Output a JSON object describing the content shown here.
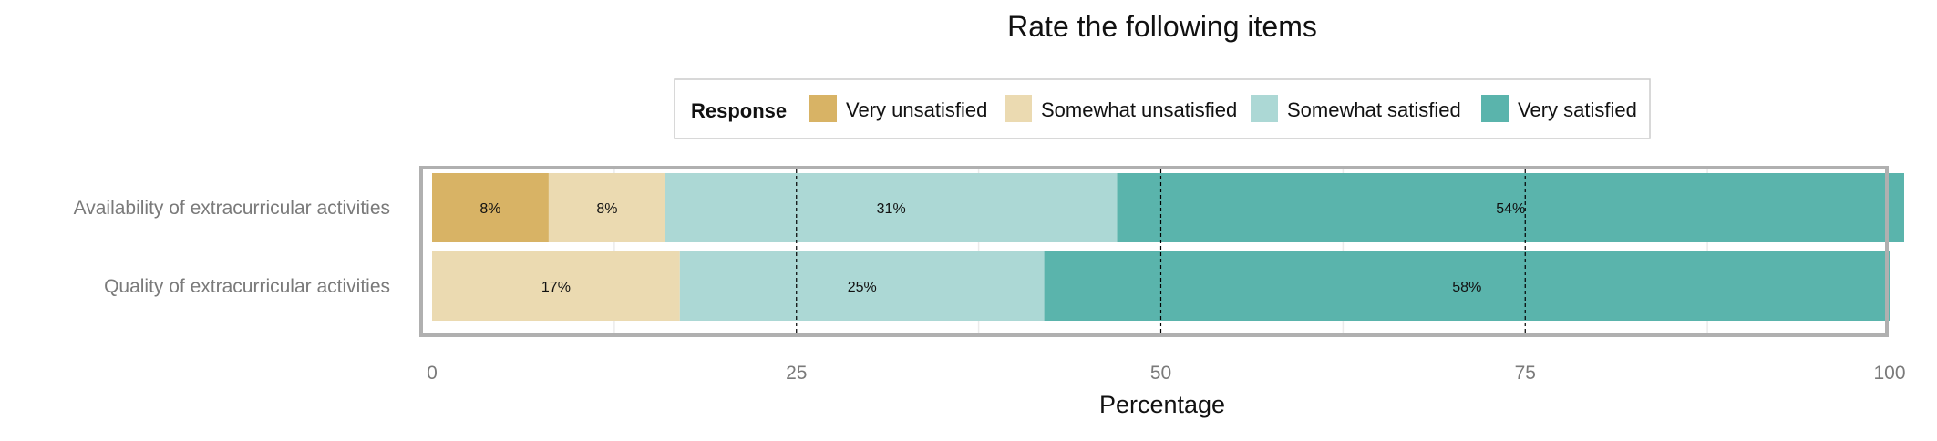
{
  "chart_data": {
    "type": "bar",
    "orientation": "horizontal",
    "stacked": true,
    "title": "Rate the following items",
    "xlabel": "Percentage",
    "ylabel": "",
    "xlim": [
      0,
      100
    ],
    "xticks": [
      0,
      25,
      50,
      75,
      100
    ],
    "grid": true,
    "legend": {
      "title": "Response",
      "position": "top"
    },
    "categories": [
      "Availability of extracurricular activities",
      "Quality of extracurricular activities"
    ],
    "series": [
      {
        "name": "Very unsatisfied",
        "color": "#d8b365",
        "values": [
          8,
          0
        ]
      },
      {
        "name": "Somewhat unsatisfied",
        "color": "#ebdab1",
        "values": [
          8,
          17
        ]
      },
      {
        "name": "Somewhat satisfied",
        "color": "#acd8d5",
        "values": [
          31,
          25
        ]
      },
      {
        "name": "Very satisfied",
        "color": "#5ab4ac",
        "values": [
          54,
          58
        ]
      }
    ],
    "data_labels": [
      [
        "8%",
        "8%",
        "31%",
        "54%"
      ],
      [
        "",
        "17%",
        "25%",
        "58%"
      ]
    ]
  }
}
